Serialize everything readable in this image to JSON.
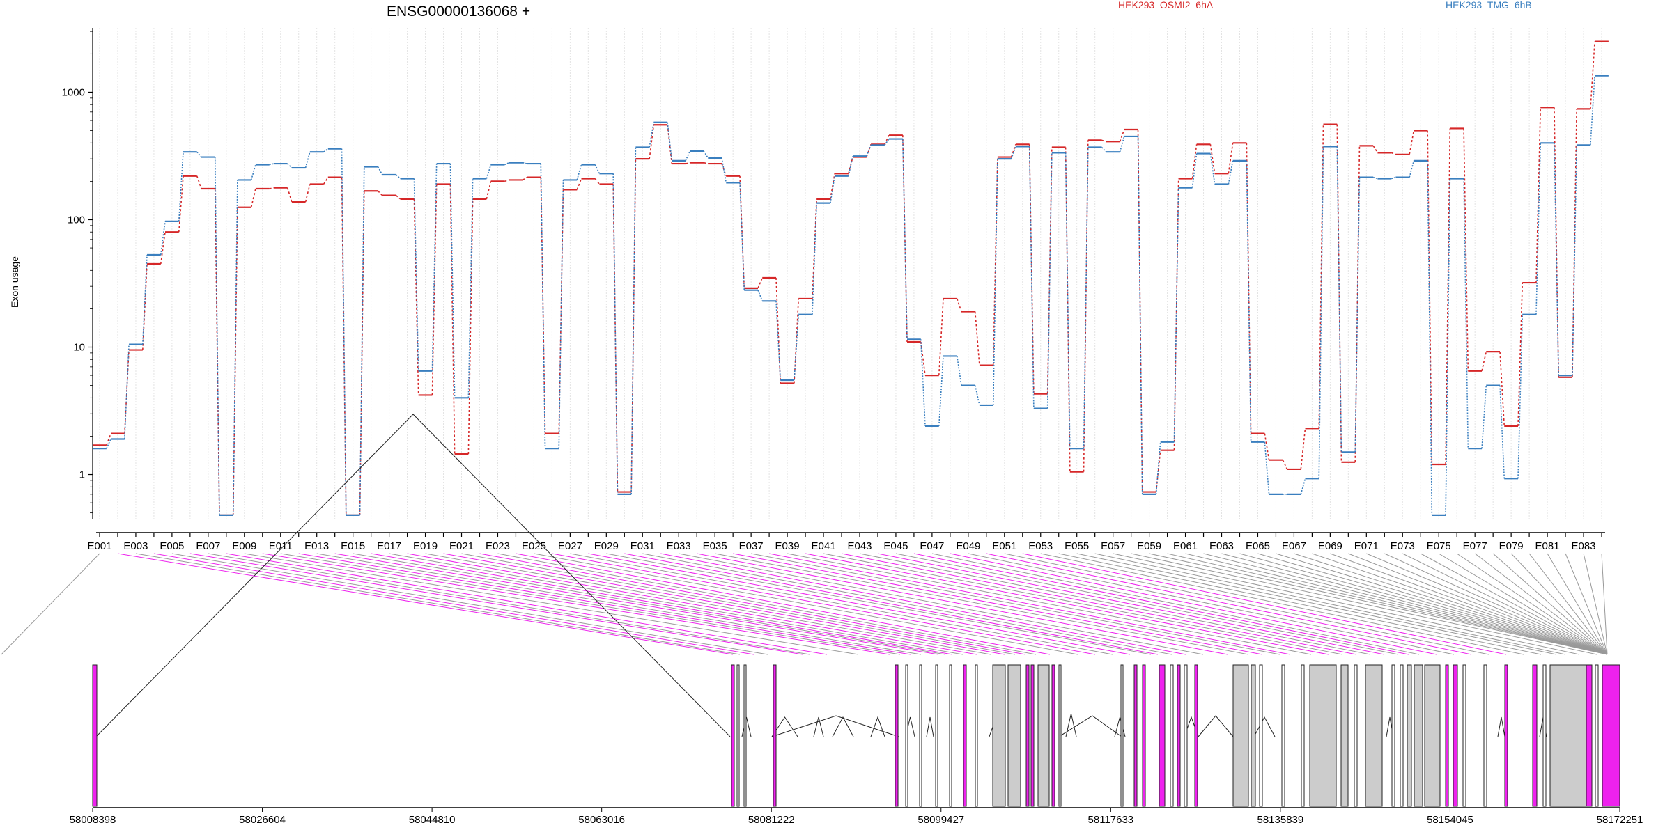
{
  "chart_data": {
    "type": "line",
    "title": "ENSG00000136068 +",
    "ylabel": "Exon usage",
    "yscale": "log",
    "ylim": [
      0.45,
      3200
    ],
    "yticks": [
      1,
      10,
      100,
      1000
    ],
    "ytick_labels": [
      "1",
      "10",
      "100",
      "1000"
    ],
    "xlabel_every": 2,
    "categories": [
      "E001",
      "E002",
      "E003",
      "E004",
      "E005",
      "E006",
      "E007",
      "E008",
      "E009",
      "E010",
      "E011",
      "E012",
      "E013",
      "E014",
      "E015",
      "E016",
      "E017",
      "E018",
      "E019",
      "E020",
      "E021",
      "E022",
      "E023",
      "E024",
      "E025",
      "E026",
      "E027",
      "E028",
      "E029",
      "E030",
      "E031",
      "E032",
      "E033",
      "E034",
      "E035",
      "E036",
      "E037",
      "E038",
      "E039",
      "E040",
      "E041",
      "E042",
      "E043",
      "E044",
      "E045",
      "E046",
      "E047",
      "E048",
      "E049",
      "E050",
      "E051",
      "E052",
      "E053",
      "E054",
      "E055",
      "E056",
      "E057",
      "E058",
      "E059",
      "E060",
      "E061",
      "E062",
      "E063",
      "E064",
      "E065",
      "E066",
      "E067",
      "E068",
      "E069",
      "E070",
      "E071",
      "E072",
      "E073",
      "E074",
      "E075",
      "E076",
      "E077",
      "E078",
      "E079",
      "E080",
      "E081",
      "E082",
      "E083",
      "E084"
    ],
    "series": [
      {
        "name": "HEK293_OSMI2_6hA",
        "color": "#d62728",
        "dash": "3,3",
        "values": [
          1.7,
          2.1,
          9.5,
          45,
          80,
          220,
          175,
          0.48,
          125,
          175,
          178,
          138,
          190,
          215,
          0.48,
          168,
          155,
          145,
          4.2,
          190,
          1.45,
          145,
          200,
          205,
          215,
          2.1,
          172,
          210,
          190,
          0.73,
          300,
          555,
          275,
          280,
          275,
          220,
          29,
          35,
          5.2,
          24,
          145,
          230,
          310,
          390,
          460,
          11,
          6,
          24,
          19,
          7.2,
          310,
          390,
          4.3,
          370,
          1.05,
          420,
          410,
          510,
          0.73,
          1.55,
          210,
          390,
          230,
          400,
          2.1,
          1.3,
          1.1,
          2.3,
          560,
          1.25,
          380,
          335,
          325,
          500,
          1.2,
          520,
          6.5,
          9.2,
          2.4,
          32,
          760,
          5.8,
          740,
          2500
        ]
      },
      {
        "name": "HEK293_TMG_6hB",
        "color": "#3a7fbf",
        "dash": "2,2",
        "values": [
          1.6,
          1.9,
          10.5,
          53,
          97,
          340,
          310,
          0.48,
          205,
          270,
          275,
          255,
          340,
          360,
          0.48,
          260,
          225,
          210,
          6.5,
          275,
          4,
          210,
          270,
          280,
          275,
          1.6,
          205,
          270,
          230,
          0.7,
          370,
          580,
          290,
          345,
          305,
          195,
          28,
          23,
          5.5,
          18,
          135,
          220,
          315,
          385,
          430,
          11.5,
          2.4,
          8.5,
          5,
          3.5,
          300,
          375,
          3.3,
          335,
          1.6,
          370,
          340,
          450,
          0.7,
          1.8,
          178,
          330,
          190,
          290,
          1.8,
          0.7,
          0.7,
          0.93,
          375,
          1.5,
          215,
          210,
          215,
          290,
          0.48,
          210,
          1.6,
          5,
          0.93,
          18,
          400,
          6,
          385,
          1350
        ]
      }
    ],
    "genome_axis": {
      "ticks": [
        58008398,
        58026604,
        58044810,
        58063016,
        58081222,
        58099427,
        58117633,
        58135839,
        58154045,
        58172251
      ],
      "tick_labels": [
        "58008398",
        "58026604",
        "58044810",
        "58063016",
        "58081222",
        "58099427",
        "58117633",
        "58135839",
        "58154045",
        "58172251"
      ]
    },
    "colors": {
      "magenta": "#ee22ee",
      "gray": "#cccccc"
    }
  }
}
